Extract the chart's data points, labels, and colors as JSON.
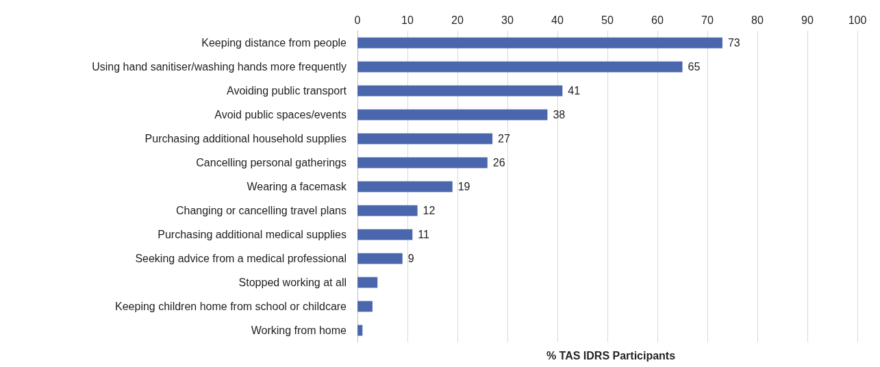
{
  "chart_data": {
    "type": "bar",
    "orientation": "horizontal",
    "xlabel": "% TAS IDRS Participants",
    "categories": [
      "Keeping distance from people",
      "Using hand sanitiser/washing hands more frequently",
      "Avoiding public transport",
      "Avoid public spaces/events",
      "Purchasing additional household supplies",
      "Cancelling personal gatherings",
      "Wearing a facemask",
      "Changing or cancelling travel plans",
      "Purchasing additional medical supplies",
      "Seeking advice from a medical professional",
      "Stopped working at all",
      "Keeping children home from school or childcare",
      "Working from home"
    ],
    "values": [
      73,
      65,
      41,
      38,
      27,
      26,
      19,
      12,
      11,
      9,
      4,
      3,
      1
    ],
    "value_labels": [
      "73",
      "65",
      "41",
      "38",
      "27",
      "26",
      "19",
      "12",
      "11",
      "9",
      null,
      null,
      null
    ],
    "color": "#4a66ac",
    "xlim": [
      0,
      100
    ],
    "xticks": [
      0,
      10,
      20,
      30,
      40,
      50,
      60,
      70,
      80,
      90,
      100
    ],
    "grid": "x"
  }
}
